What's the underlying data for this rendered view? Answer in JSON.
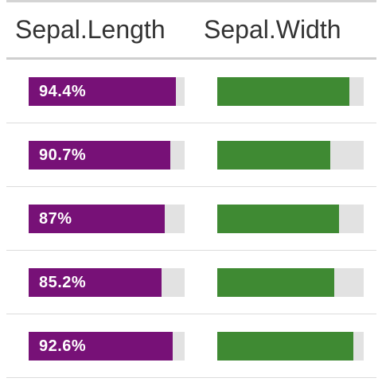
{
  "colors": {
    "sepal_length_bar": "#771177",
    "sepal_width_bar": "#3f8a33",
    "track": "#e2e2e2"
  },
  "table": {
    "columns": [
      "Sepal.Length",
      "Sepal.Width"
    ],
    "rows": [
      {
        "sepal_length_label": "94.4%",
        "sepal_length_fraction": 0.944,
        "sepal_width_fraction": 0.9
      },
      {
        "sepal_length_label": "90.7%",
        "sepal_length_fraction": 0.907,
        "sepal_width_fraction": 0.77
      },
      {
        "sepal_length_label": "87%",
        "sepal_length_fraction": 0.87,
        "sepal_width_fraction": 0.83
      },
      {
        "sepal_length_label": "85.2%",
        "sepal_length_fraction": 0.852,
        "sepal_width_fraction": 0.8
      },
      {
        "sepal_length_label": "92.6%",
        "sepal_length_fraction": 0.926,
        "sepal_width_fraction": 0.93
      }
    ]
  }
}
